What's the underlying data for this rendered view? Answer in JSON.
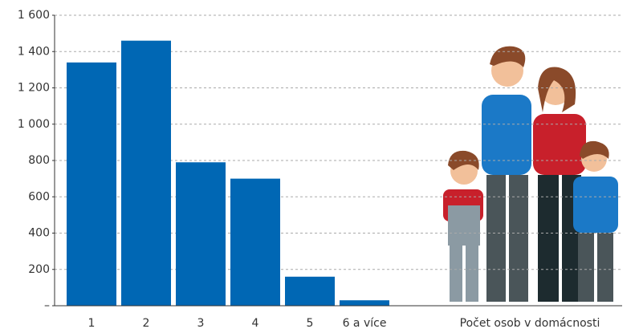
{
  "chart_data": {
    "type": "bar",
    "x_label": "Počet osob v domácnosti",
    "categories": [
      "1",
      "2",
      "3",
      "4",
      "5",
      "6 a více"
    ],
    "values": [
      1340,
      1460,
      790,
      700,
      160,
      30
    ],
    "color": "#0067b4",
    "ylim": [
      0,
      1600
    ],
    "yticks": [
      {
        "value": 0,
        "label": "–"
      },
      200,
      400,
      600,
      800,
      {
        "value": 1000,
        "label": "1 000"
      },
      {
        "value": 1200,
        "label": "1 200"
      },
      {
        "value": 1400,
        "label": "1 400"
      },
      {
        "value": 1600,
        "label": "1 600"
      }
    ],
    "grid": true
  }
}
